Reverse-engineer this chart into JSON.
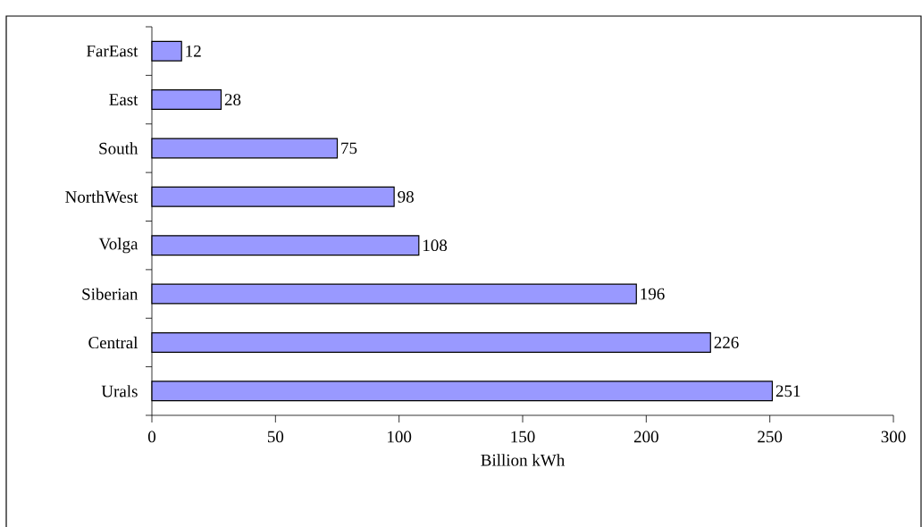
{
  "chart_data": {
    "type": "bar",
    "orientation": "horizontal",
    "xlabel": "Billion kWh",
    "categories": [
      "FarEast",
      "East",
      "South",
      "NorthWest",
      "Volga",
      "Siberian",
      "Central",
      "Urals"
    ],
    "values": [
      12,
      28,
      75,
      98,
      108,
      196,
      226,
      251
    ],
    "color": "#9999ff",
    "xlim": [
      0,
      300
    ],
    "xticks": [
      0,
      50,
      100,
      150,
      200,
      250,
      300
    ],
    "data_labels": true
  }
}
